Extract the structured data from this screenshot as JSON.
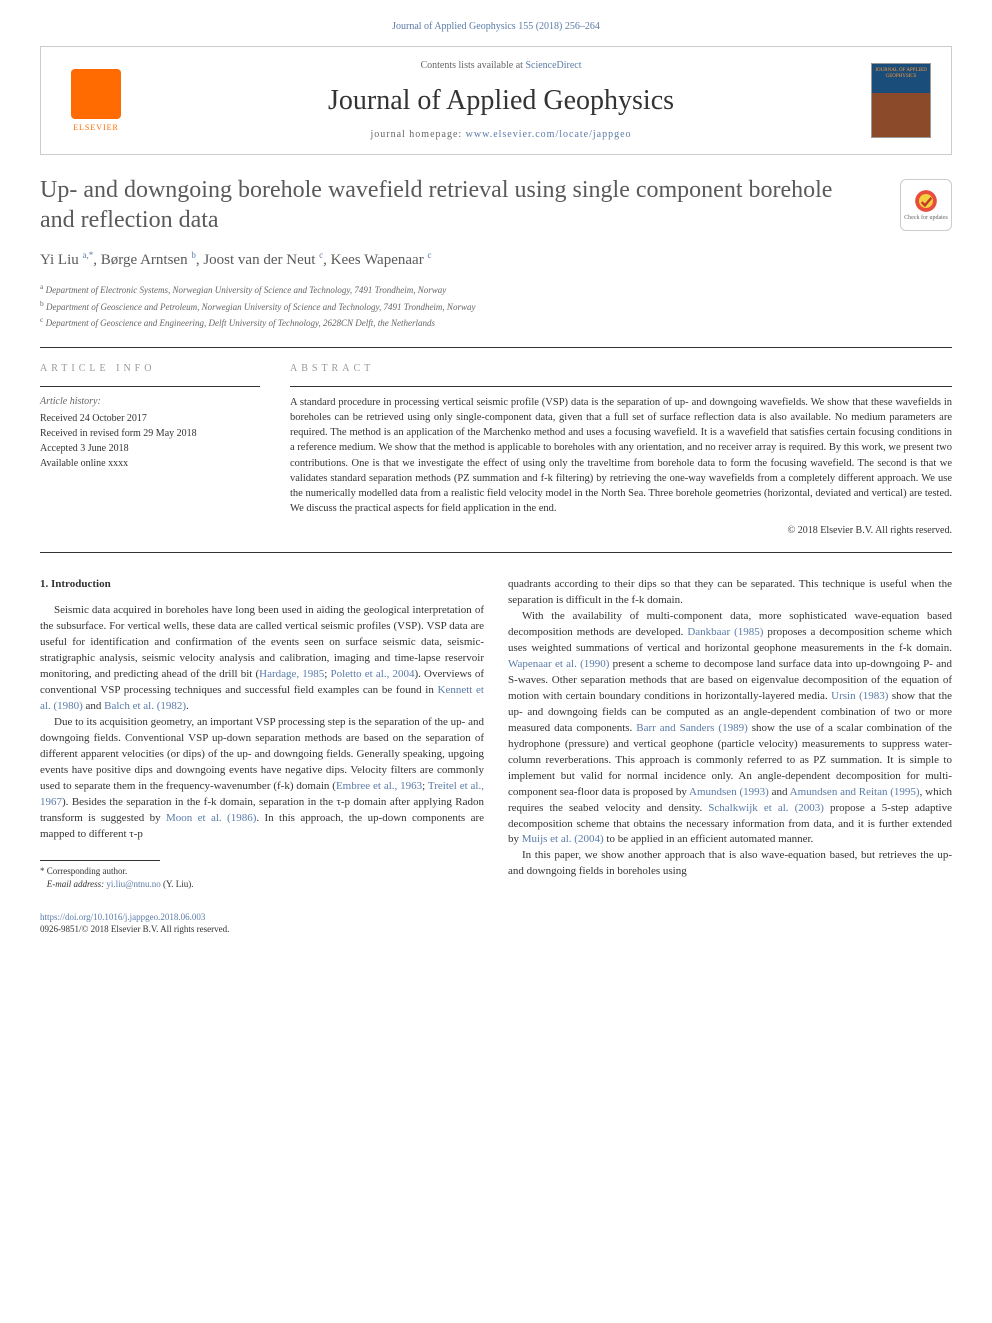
{
  "header": {
    "top_link": "Journal of Applied Geophysics 155 (2018) 256–264",
    "contents_prefix": "Contents lists available at ",
    "contents_link": "ScienceDirect",
    "journal_name": "Journal of Applied Geophysics",
    "homepage_prefix": "journal homepage: ",
    "homepage_link": "www.elsevier.com/locate/jappgeo",
    "publisher": "ELSEVIER",
    "cover_text": "JOURNAL OF APPLIED GEOPHYSICS"
  },
  "check_updates": {
    "label": "Check for updates"
  },
  "title": "Up- and downgoing borehole wavefield retrieval using single component borehole and reflection data",
  "authors_html": "Yi Liu <sup>a,*</sup>, Børge Arntsen <sup>b</sup>, Joost van der Neut <sup>c</sup>, Kees Wapenaar <sup>c</sup>",
  "affiliations": {
    "a": "Department of Electronic Systems, Norwegian University of Science and Technology, 7491 Trondheim, Norway",
    "b": "Department of Geoscience and Petroleum, Norwegian University of Science and Technology, 7491 Trondheim, Norway",
    "c": "Department of Geoscience and Engineering, Delft University of Technology, 2628CN Delft, the Netherlands"
  },
  "info": {
    "heading": "ARTICLE INFO",
    "history_label": "Article history:",
    "received": "Received 24 October 2017",
    "revised": "Received in revised form 29 May 2018",
    "accepted": "Accepted 3 June 2018",
    "online": "Available online xxxx"
  },
  "abstract": {
    "heading": "ABSTRACT",
    "text": "A standard procedure in processing vertical seismic profile (VSP) data is the separation of up- and downgoing wavefields. We show that these wavefields in boreholes can be retrieved using only single-component data, given that a full set of surface reflection data is also available. No medium parameters are required. The method is an application of the Marchenko method and uses a focusing wavefield. It is a wavefield that satisfies certain focusing conditions in a reference medium. We show that the method is applicable to boreholes with any orientation, and no receiver array is required. By this work, we present two contributions. One is that we investigate the effect of using only the traveltime from borehole data to form the focusing wavefield. The second is that we validates standard separation methods (PZ summation and f-k filtering) by retrieving the one-way wavefields from a completely different approach. We use the numerically modelled data from a realistic field velocity model in the North Sea. Three borehole geometries (horizontal, deviated and vertical) are tested. We discuss the practical aspects for field application in the end.",
    "copyright": "© 2018 Elsevier B.V. All rights reserved."
  },
  "section1": {
    "heading": "1. Introduction",
    "p1": "Seismic data acquired in boreholes have long been used in aiding the geological interpretation of the subsurface. For vertical wells, these data are called vertical seismic profiles (VSP). VSP data are useful for identification and confirmation of the events seen on surface seismic data, seismic-stratigraphic analysis, seismic velocity analysis and calibration, imaging and time-lapse reservoir monitoring, and predicting ahead of the drill bit (",
    "p1_ref1": "Hardage, 1985",
    "p1_mid1": "; ",
    "p1_ref2": "Poletto et al., 2004",
    "p1_mid2": "). Overviews of conventional VSP processing techniques and successful field examples can be found in ",
    "p1_ref3": "Kennett et al. (1980)",
    "p1_mid3": " and ",
    "p1_ref4": "Balch et al. (1982)",
    "p1_end": ".",
    "p2": "Due to its acquisition geometry, an important VSP processing step is the separation of the up- and downgoing fields. Conventional VSP up-down separation methods are based on the separation of different apparent velocities (or dips) of the up- and downgoing fields. Generally speaking, upgoing events have positive dips and downgoing events have negative dips. Velocity filters are commonly used to separate them in the frequency-wavenumber (f-k) domain (",
    "p2_ref1": "Embree et al., 1963",
    "p2_mid1": "; ",
    "p2_ref2": "Treitel et al., 1967",
    "p2_mid2": "). Besides the separation in the f-k domain, separation in the τ-p domain after applying Radon transform is suggested by ",
    "p2_ref3": "Moon et al. (1986)",
    "p2_end": ". In this approach, the up-down components are mapped to different τ-p",
    "p3": "quadrants according to their dips so that they can be separated. This technique is useful when the separation is difficult in the f-k domain.",
    "p4": "With the availability of multi-component data, more sophisticated wave-equation based decomposition methods are developed. ",
    "p4_ref1": "Dankbaar (1985)",
    "p4_mid1": " proposes a decomposition scheme which uses weighted summations of vertical and horizontal geophone measurements in the f-k domain. ",
    "p4_ref2": "Wapenaar et al. (1990)",
    "p4_mid2": " present a scheme to decompose land surface data into up-downgoing P- and S-waves. Other separation methods that are based on eigenvalue decomposition of the equation of motion with certain boundary conditions in horizontally-layered media. ",
    "p4_ref3": "Ursin (1983)",
    "p4_mid3": " show that the up- and downgoing fields can be computed as an angle-dependent combination of two or more measured data components. ",
    "p4_ref4": "Barr and Sanders (1989)",
    "p4_mid4": " show the use of a scalar combination of the hydrophone (pressure) and vertical geophone (particle velocity) measurements to suppress water-column reverberations. This approach is commonly referred to as PZ summation. It is simple to implement but valid for normal incidence only. An angle-dependent decomposition for multi-component sea-floor data is proposed by ",
    "p4_ref5": "Amundsen (1993)",
    "p4_mid5": " and ",
    "p4_ref6": "Amundsen and Reitan (1995)",
    "p4_mid6": ", which requires the seabed velocity and density. ",
    "p4_ref7": "Schalkwijk et al. (2003)",
    "p4_mid7": " propose a 5-step adaptive decomposition scheme that obtains the necessary information from data, and it is further extended by ",
    "p4_ref8": "Muijs et al. (2004)",
    "p4_end": " to be applied in an efficient automated manner.",
    "p5": "In this paper, we show another approach that is also wave-equation based, but retrieves the up- and downgoing fields in boreholes using"
  },
  "footnote": {
    "corresponding": "* Corresponding author.",
    "email_label": "E-mail address: ",
    "email": "yi.liu@ntnu.no",
    "email_suffix": " (Y. Liu)."
  },
  "footer": {
    "doi": "https://doi.org/10.1016/j.jappgeo.2018.06.003",
    "issn": "0926-9851/© 2018 Elsevier B.V. All rights reserved."
  },
  "colors": {
    "link": "#5b7ba8",
    "text": "#333333",
    "muted": "#666666",
    "elsevier": "#ff6b00"
  }
}
